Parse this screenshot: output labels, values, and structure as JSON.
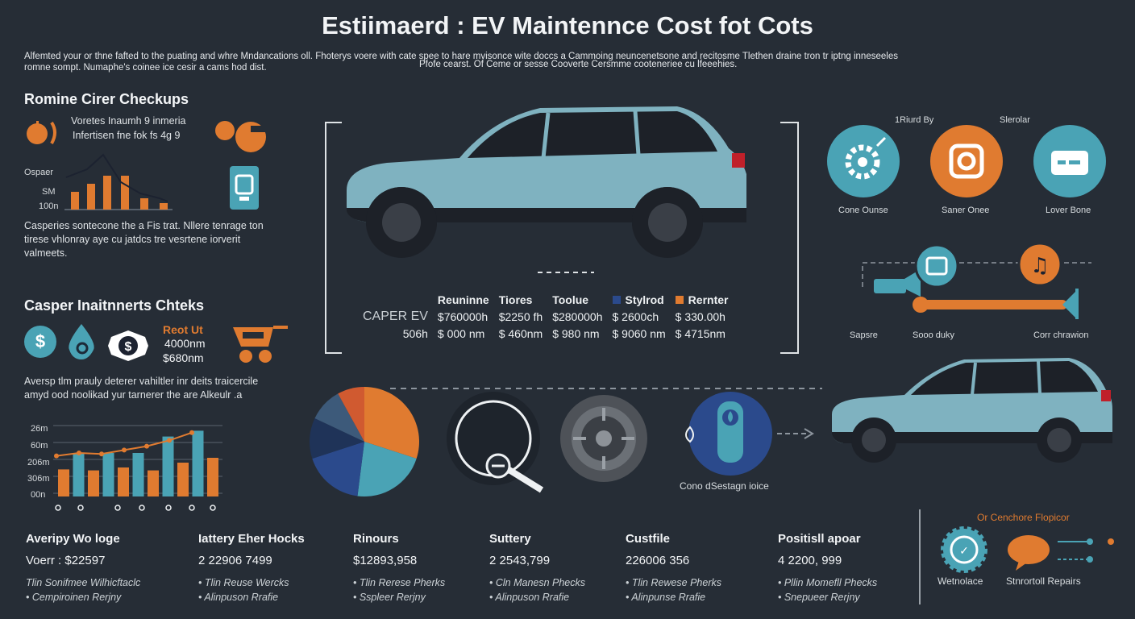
{
  "title": "Estiimaerd : EV Maintennce Cost fot Cots",
  "subtitle": {
    "line1": "Alfemted your or thne fafted to the puating and whre Mndancations oll. Fhoterys voere with cate spee to hare mvisonce wite doccs a Cammoing neuncenetsone and recitosme Tlethen draine tron tr iptng inneseeles",
    "line2": "romne sompt. Numaphe's coinee ice cesir a cams hod dist.",
    "line3": "Pfofe cearst. Of Ceme or sesse Cooverte Cersmme cooteneriee cu lfeeehies."
  },
  "left": {
    "section1_title": "Romine Cirer Checkups",
    "section1_note_line1": "Voretes Inaumh 9 inmeria",
    "section1_note_line2": "Infertisen fne fok fs 4g 9",
    "chart1_label": "Ospaer",
    "chart1_tick1": "SM",
    "chart1_tick2": "100n",
    "section1_para": [
      "Casperies sontecone the a Fis trat. Nllere tenrage ton",
      "tirese vhlonray aye cu jatdcs tre vesrtene iorverit",
      "valmeets."
    ],
    "section2_title": "Casper Inaitnnerts Chteks",
    "reot_label": "Reot Ut",
    "reot_v1": "4000nm",
    "reot_v2": "$680nm",
    "section2_para": [
      "Aversp tlm prauly deterer vahiltler inr deits traicercile",
      "amyd ood noolikad yur tarnerer the are Alkeulr .a"
    ],
    "chart2_ticks": [
      "26m",
      "60m",
      "206m",
      "306m",
      "00n"
    ],
    "chart2_values": [
      28,
      45,
      27,
      45,
      30,
      45,
      27,
      62,
      35,
      68,
      40
    ],
    "chart2_line": [
      42,
      45,
      44,
      48,
      52,
      58,
      66
    ]
  },
  "center": {
    "table_headers": [
      "Reuninne",
      "Tiores",
      "Toolue",
      "Stylrod",
      "Rernter"
    ],
    "table_rows": [
      {
        "label": "CAPER EV",
        "values": [
          "$760000h",
          "$2250 fh",
          "$280000h",
          "$ 2600ch",
          "$ 330.00h"
        ]
      },
      {
        "label": "506h",
        "values": [
          "$ 000 nm",
          "$ 460nm",
          "$ 980 nm",
          "$ 9060 nm",
          "$ 4715nm"
        ]
      }
    ],
    "pie_values": [
      30,
      22,
      18,
      12,
      10,
      8
    ],
    "pie_colors": [
      "#e07b30",
      "#4aa3b5",
      "#2b4a8c",
      "#1f3358",
      "#3d5a7a",
      "#d05a30"
    ],
    "service_label": "Cono dSestagn ioice"
  },
  "right": {
    "header1": "1Riurd By",
    "header2": "Slerolar",
    "icons": [
      "Cone Ounse",
      "Saner Onee",
      "Lover Bone"
    ],
    "flow_labels": [
      "Sapsre",
      "Sooo duky",
      "Corr chrawion"
    ],
    "foot_title": "Or Cenchore Flopicor",
    "foot_labels": [
      "Wetnolace",
      "Stnrortoll Repairs"
    ]
  },
  "footer": [
    {
      "title": "Averipy Wo loge",
      "value": "Voerr : $22597",
      "l1": "Tlin Sonifmee Wilhicftaclc",
      "l2": "• Cempiroinen Rerjny"
    },
    {
      "title": "Iattery Eher Hocks",
      "value": "2 22906 7499",
      "l1": "• Tlin Reuse Wercks",
      "l2": "• Alinpuson Rrafie"
    },
    {
      "title": "Rinours",
      "value": "$12893,958",
      "l1": "• Tlin Rerese Pherks",
      "l2": "• Sspleer Rerjny"
    },
    {
      "title": "Suttery",
      "value": "2 2543,799",
      "l1": "• Cln Manesn Phecks",
      "l2": "• Alinpuson Rrafie"
    },
    {
      "title": "Custfile",
      "value": "226006 356",
      "l1": "• Tlin Rewese Pherks",
      "l2": "• Alinpunse Rrafie"
    },
    {
      "title": "Positisll apoar",
      "value": "4 2200, 999",
      "l1": "• Pllin Momefll Phecks",
      "l2": "• Snepueer Rerjny"
    }
  ]
}
